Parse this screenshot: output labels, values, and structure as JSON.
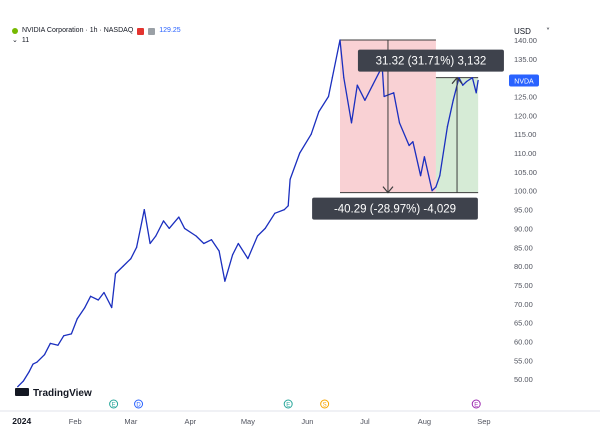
{
  "header": {
    "symbol": "NVIDIA Corporation · 1h · NASDAQ",
    "price": "129.25",
    "indicator_count": "11",
    "price_color": "#2962ff"
  },
  "currency_label": "USD",
  "symbol_badge": "NVDA",
  "watermark": "TradingView",
  "line_color": "#1b2fbf",
  "chart_data": {
    "type": "line",
    "title": "",
    "xlabel": "",
    "ylabel": "",
    "ylim": [
      45,
      140
    ],
    "y_ticks": [
      50,
      55,
      60,
      65,
      70,
      75,
      80,
      85,
      90,
      95,
      100,
      105,
      110,
      115,
      120,
      125,
      130,
      135,
      140
    ],
    "y_tick_labels": [
      "50.00",
      "55.00",
      "60.00",
      "65.00",
      "70.00",
      "75.00",
      "80.00",
      "85.00",
      "90.00",
      "95.00",
      "100.00",
      "105.00",
      "110.00",
      "115.00",
      "120.00",
      "125.00",
      "130.00",
      "135.00",
      "140.00"
    ],
    "x_ticks": [
      {
        "date": "2024-01-01",
        "label": "2024"
      },
      {
        "date": "2024-02-01",
        "label": "Feb"
      },
      {
        "date": "2024-03-01",
        "label": "Mar"
      },
      {
        "date": "2024-04-01",
        "label": "Apr"
      },
      {
        "date": "2024-05-01",
        "label": "May"
      },
      {
        "date": "2024-06-01",
        "label": "Jun"
      },
      {
        "date": "2024-07-01",
        "label": "Jul"
      },
      {
        "date": "2024-08-01",
        "label": "Aug"
      },
      {
        "date": "2024-09-01",
        "label": "Sep"
      }
    ],
    "x_range": [
      "2023-12-29",
      "2024-09-12"
    ],
    "grid": false,
    "series": [
      {
        "x": [
          "2024-01-02",
          "2024-01-05",
          "2024-01-08",
          "2024-01-10",
          "2024-01-12",
          "2024-01-16",
          "2024-01-19",
          "2024-01-23",
          "2024-01-26",
          "2024-01-30",
          "2024-02-02",
          "2024-02-06",
          "2024-02-09",
          "2024-02-13",
          "2024-02-16",
          "2024-02-20",
          "2024-02-22",
          "2024-02-26",
          "2024-03-01",
          "2024-03-04",
          "2024-03-06",
          "2024-03-08",
          "2024-03-11",
          "2024-03-14",
          "2024-03-18",
          "2024-03-21",
          "2024-03-26",
          "2024-03-29",
          "2024-04-04",
          "2024-04-08",
          "2024-04-12",
          "2024-04-16",
          "2024-04-19",
          "2024-04-23",
          "2024-04-26",
          "2024-05-01",
          "2024-05-06",
          "2024-05-10",
          "2024-05-15",
          "2024-05-20",
          "2024-05-22",
          "2024-05-23",
          "2024-05-28",
          "2024-06-03",
          "2024-06-07",
          "2024-06-12",
          "2024-06-14",
          "2024-06-18",
          "2024-06-20",
          "2024-06-24",
          "2024-06-27",
          "2024-07-01",
          "2024-07-05",
          "2024-07-10",
          "2024-07-11",
          "2024-07-16",
          "2024-07-19",
          "2024-07-24",
          "2024-07-26",
          "2024-07-30",
          "2024-08-01",
          "2024-08-05",
          "2024-08-07",
          "2024-08-09",
          "2024-08-13",
          "2024-08-16",
          "2024-08-19",
          "2024-08-21",
          "2024-08-23",
          "2024-08-26",
          "2024-08-28",
          "2024-08-29"
        ],
        "values": [
          48.0,
          49.5,
          52.0,
          54.0,
          54.5,
          56.5,
          59.5,
          59.0,
          61.5,
          62.0,
          66.0,
          69.0,
          72.0,
          71.0,
          73.0,
          69.0,
          78.0,
          80.0,
          82.0,
          85.0,
          90.0,
          95.0,
          86.0,
          88.0,
          92.0,
          90.0,
          93.0,
          90.0,
          88.0,
          86.0,
          87.0,
          84.0,
          76.0,
          83.0,
          86.0,
          82.0,
          88.0,
          90.0,
          94.0,
          95.0,
          96.0,
          103.0,
          110.0,
          115.0,
          121.0,
          125.0,
          130.0,
          140.0,
          130.0,
          118.0,
          128.0,
          124.0,
          128.0,
          133.0,
          125.0,
          126.0,
          118.0,
          112.0,
          113.0,
          104.0,
          109.0,
          100.0,
          101.0,
          104.0,
          117.0,
          124.0,
          130.0,
          128.0,
          129.0,
          130.0,
          126.0,
          129.25
        ]
      }
    ],
    "annotations": [
      {
        "label": "-40.29 (-28.97%) -4,029",
        "x0": "2024-06-18",
        "x1": "2024-08-07",
        "y_top": 140.0,
        "y_bottom": 99.5,
        "direction": "down",
        "fill": "#f8c9cc",
        "arrow_color": "#3c3c3c"
      },
      {
        "label": "31.32 (31.71%) 3,132",
        "x0": "2024-08-07",
        "x1": "2024-08-29",
        "y_top": 130.0,
        "y_bottom": 99.5,
        "direction": "up",
        "fill": "#cfe8cf",
        "arrow_color": "#3c3c3c"
      }
    ],
    "event_markers": [
      {
        "date": "2024-02-21",
        "letter": "E"
      },
      {
        "date": "2024-03-05",
        "letter": "D"
      },
      {
        "date": "2024-05-22",
        "letter": "E"
      },
      {
        "date": "2024-06-10",
        "letter": "S"
      },
      {
        "date": "2024-08-28",
        "letter": "E"
      }
    ]
  }
}
